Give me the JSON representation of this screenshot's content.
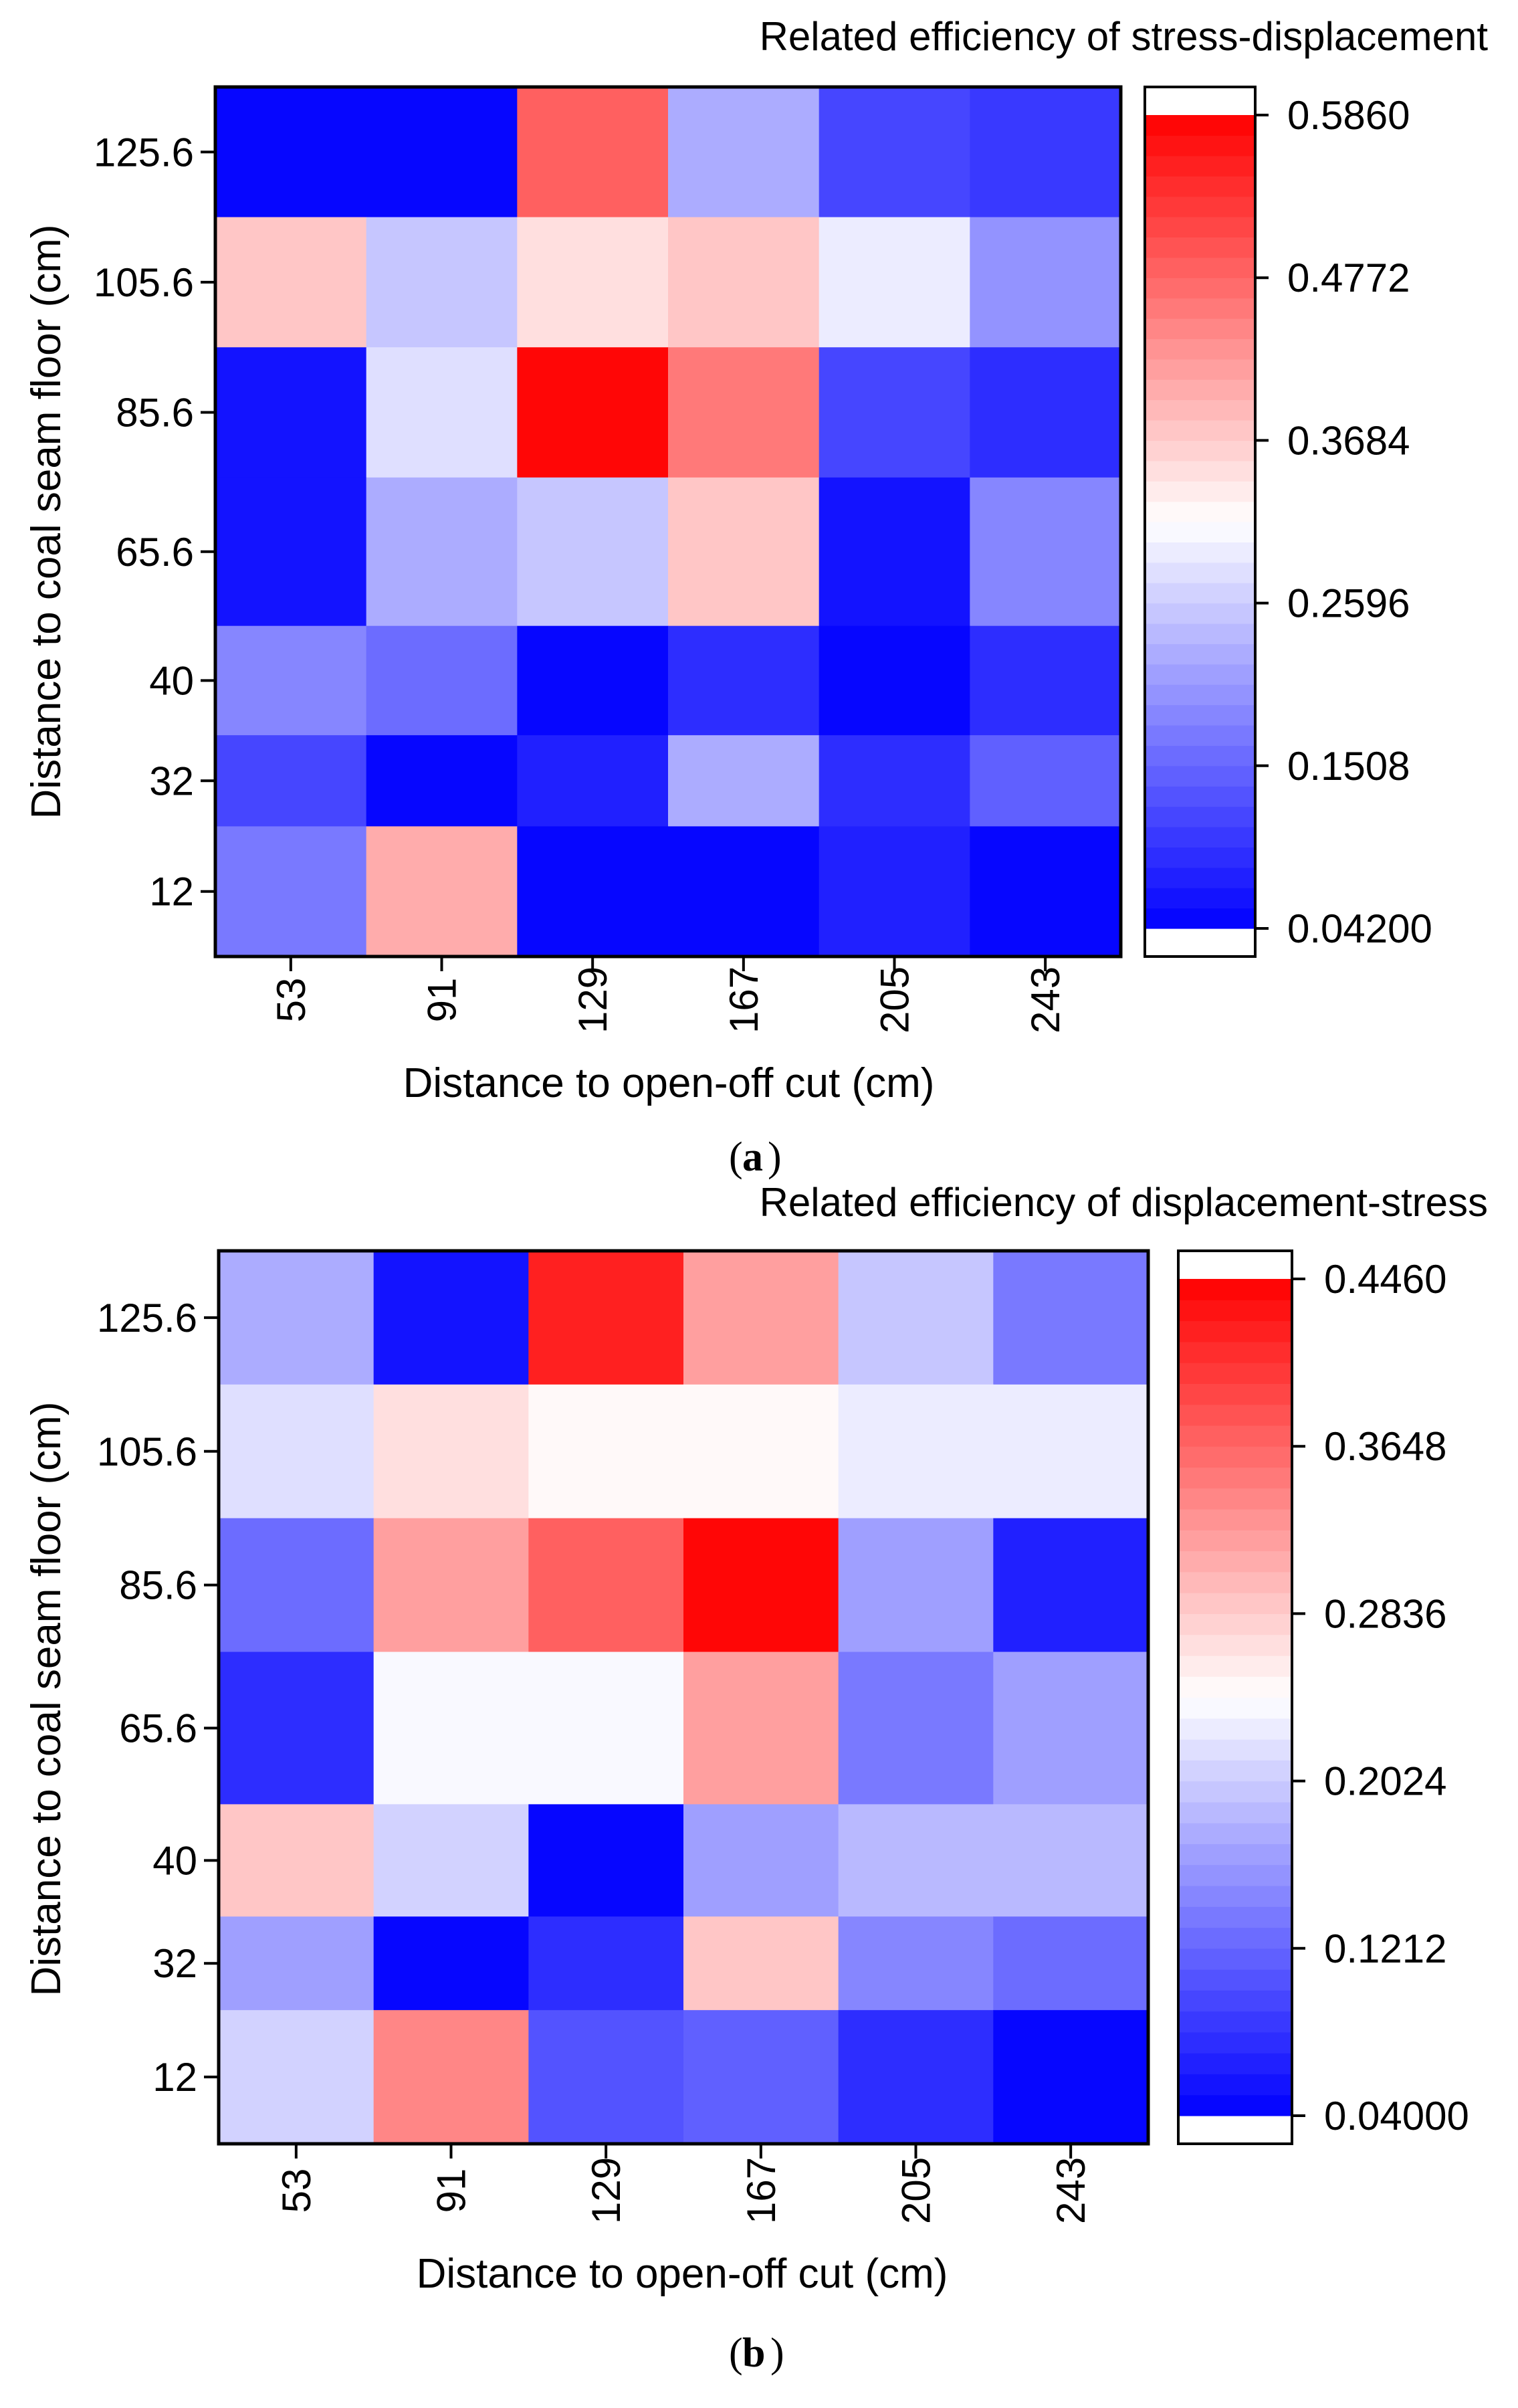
{
  "chart_data": [
    {
      "type": "heatmap",
      "title": "Related efficiency of stress-displacement",
      "panel_label": "a",
      "xlabel": "Distance to open-off cut (cm)",
      "ylabel": "Distance to coal seam floor (cm)",
      "x": [
        "53",
        "91",
        "129",
        "167",
        "205",
        "243"
      ],
      "y": [
        "125.6",
        "105.6",
        "85.6",
        "65.6",
        "40",
        "32",
        "12"
      ],
      "y_band_edges": [
        135.6,
        115.6,
        95.6,
        75.6,
        52.8,
        36,
        22,
        2
      ],
      "colorbar": {
        "min": 0.042,
        "max": 0.586,
        "ticks": [
          "0.5860",
          "0.4772",
          "0.3684",
          "0.2596",
          "0.1508",
          "0.04200"
        ],
        "tick_values": [
          0.586,
          0.4772,
          0.3684,
          0.2596,
          0.1508,
          0.042
        ],
        "levels": 40,
        "low_color": "#0000ff",
        "mid_color": "#ffffff",
        "high_color": "#ff0000"
      },
      "values": [
        [
          0.05,
          0.05,
          0.48,
          0.23,
          0.12,
          0.1
        ],
        [
          0.38,
          0.25,
          0.35,
          0.37,
          0.29,
          0.2
        ],
        [
          0.06,
          0.28,
          0.586,
          0.46,
          0.11,
          0.09
        ],
        [
          0.06,
          0.22,
          0.25,
          0.38,
          0.06,
          0.18
        ],
        [
          0.19,
          0.16,
          0.045,
          0.09,
          0.045,
          0.09
        ],
        [
          0.11,
          0.042,
          0.07,
          0.22,
          0.09,
          0.15
        ],
        [
          0.17,
          0.4,
          0.045,
          0.045,
          0.07,
          0.042
        ]
      ]
    },
    {
      "type": "heatmap",
      "title": "Related efficiency of displacement-stress",
      "panel_label": "b",
      "xlabel": "Distance to open-off cut (cm)",
      "ylabel": "Distance to coal seam floor (cm)",
      "x": [
        "53",
        "91",
        "129",
        "167",
        "205",
        "243"
      ],
      "y": [
        "125.6",
        "105.6",
        "85.6",
        "65.6",
        "40",
        "32",
        "12"
      ],
      "y_band_edges": [
        135.6,
        115.6,
        95.6,
        75.6,
        52.8,
        36,
        22,
        2
      ],
      "colorbar": {
        "min": 0.04,
        "max": 0.446,
        "ticks": [
          "0.4460",
          "0.3648",
          "0.2836",
          "0.2024",
          "0.1212",
          "0.04000"
        ],
        "tick_values": [
          0.446,
          0.3648,
          0.2836,
          0.2024,
          0.1212,
          0.04
        ],
        "levels": 40,
        "low_color": "#0000ff",
        "mid_color": "#ffffff",
        "high_color": "#ff0000"
      },
      "values": [
        [
          0.18,
          0.06,
          0.42,
          0.32,
          0.2,
          0.14
        ],
        [
          0.22,
          0.27,
          0.25,
          0.25,
          0.23,
          0.23
        ],
        [
          0.13,
          0.32,
          0.37,
          0.446,
          0.17,
          0.07
        ],
        [
          0.08,
          0.24,
          0.24,
          0.32,
          0.14,
          0.17
        ],
        [
          0.29,
          0.21,
          0.05,
          0.17,
          0.19,
          0.19
        ],
        [
          0.17,
          0.04,
          0.08,
          0.29,
          0.15,
          0.13
        ],
        [
          0.21,
          0.34,
          0.11,
          0.12,
          0.08,
          0.04
        ]
      ]
    }
  ]
}
